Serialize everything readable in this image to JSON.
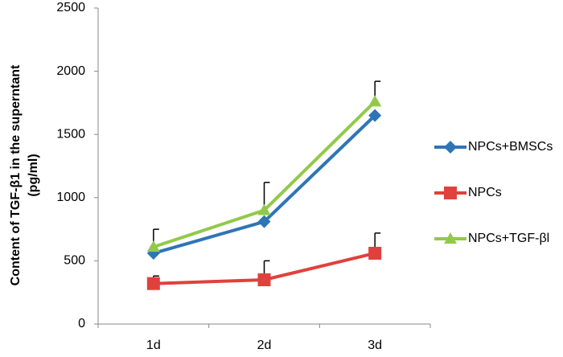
{
  "chart_data": {
    "type": "line",
    "y_label": [
      "Content of TGF-β1 in the superntant",
      "(pg/ml)"
    ],
    "categories": [
      "1d",
      "2d",
      "3d"
    ],
    "series": [
      {
        "name": "NPCs+BMSCs",
        "color": "#2e75b6",
        "marker": "diamond",
        "values": [
          560,
          810,
          1650
        ]
      },
      {
        "name": "NPCs",
        "color": "#e0413c",
        "marker": "square",
        "values": [
          320,
          350,
          560
        ],
        "errors": [
          60,
          150,
          160
        ]
      },
      {
        "name": "NPCs+TGF-βl",
        "color": "#92c94a",
        "marker": "triangle",
        "values": [
          610,
          900,
          1760
        ],
        "errors": [
          140,
          220,
          160
        ]
      }
    ],
    "ylim": [
      0,
      2500
    ],
    "yticks": [
      0,
      500,
      1000,
      1500,
      2000,
      2500
    ],
    "grid": false,
    "legend": "right"
  }
}
